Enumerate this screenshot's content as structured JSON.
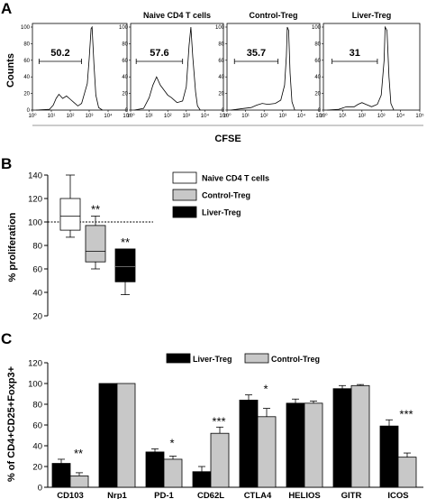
{
  "panel_labels": [
    "A",
    "B",
    "C"
  ],
  "chart_data": [
    {
      "type": "histogram",
      "panel": "A",
      "ylabel": "Counts",
      "xlabel": "CFSE",
      "x_ticks": [
        "10⁰",
        "10¹",
        "10²",
        "10³",
        "10⁴",
        "10⁵"
      ],
      "y_ticks": [
        "0",
        "20",
        "40",
        "60",
        "80",
        "100"
      ],
      "x_range_log10": [
        0,
        5
      ],
      "y_range_percent": [
        0,
        100
      ],
      "histograms": [
        {
          "title": "",
          "gate_label": "50.2",
          "gate_range_log10": [
            0.35,
            2.6
          ],
          "profile": [
            [
              0.2,
              0
            ],
            [
              0.9,
              1
            ],
            [
              1.1,
              6
            ],
            [
              1.25,
              14
            ],
            [
              1.4,
              19
            ],
            [
              1.6,
              14
            ],
            [
              1.8,
              17
            ],
            [
              2.0,
              13
            ],
            [
              2.2,
              9
            ],
            [
              2.4,
              5
            ],
            [
              2.6,
              8
            ],
            [
              2.9,
              32
            ],
            [
              3.0,
              62
            ],
            [
              3.1,
              98
            ],
            [
              3.15,
              100
            ],
            [
              3.25,
              55
            ],
            [
              3.35,
              18
            ],
            [
              3.5,
              3
            ],
            [
              3.7,
              0
            ]
          ]
        },
        {
          "title": "Naive CD4 T cells",
          "gate_label": "57.6",
          "gate_range_log10": [
            0.3,
            2.8
          ],
          "profile": [
            [
              0.2,
              0
            ],
            [
              0.7,
              2
            ],
            [
              1.0,
              15
            ],
            [
              1.2,
              30
            ],
            [
              1.4,
              40
            ],
            [
              1.6,
              30
            ],
            [
              1.8,
              24
            ],
            [
              2.0,
              18
            ],
            [
              2.2,
              15
            ],
            [
              2.5,
              9
            ],
            [
              2.8,
              11
            ],
            [
              3.0,
              28
            ],
            [
              3.15,
              78
            ],
            [
              3.25,
              100
            ],
            [
              3.35,
              64
            ],
            [
              3.5,
              22
            ],
            [
              3.6,
              5
            ],
            [
              3.75,
              0
            ]
          ]
        },
        {
          "title": "Control-Treg",
          "gate_label": "35.7",
          "gate_range_log10": [
            0.4,
            2.75
          ],
          "profile": [
            [
              0.2,
              0
            ],
            [
              0.9,
              2
            ],
            [
              1.3,
              3
            ],
            [
              1.6,
              6
            ],
            [
              1.9,
              8
            ],
            [
              2.2,
              7
            ],
            [
              2.6,
              8
            ],
            [
              2.9,
              12
            ],
            [
              3.1,
              30
            ],
            [
              3.2,
              65
            ],
            [
              3.25,
              100
            ],
            [
              3.32,
              96
            ],
            [
              3.4,
              45
            ],
            [
              3.5,
              10
            ],
            [
              3.65,
              0
            ]
          ]
        },
        {
          "title": "Liver-Treg",
          "gate_label": "31",
          "gate_range_log10": [
            0.45,
            2.8
          ],
          "profile": [
            [
              0.2,
              0
            ],
            [
              0.8,
              1
            ],
            [
              1.2,
              4
            ],
            [
              1.6,
              4
            ],
            [
              1.8,
              7
            ],
            [
              2.0,
              9
            ],
            [
              2.2,
              7
            ],
            [
              2.5,
              4
            ],
            [
              2.8,
              7
            ],
            [
              3.0,
              18
            ],
            [
              3.15,
              60
            ],
            [
              3.2,
              100
            ],
            [
              3.3,
              96
            ],
            [
              3.4,
              40
            ],
            [
              3.5,
              8
            ],
            [
              3.65,
              0
            ]
          ]
        }
      ]
    },
    {
      "type": "boxplot",
      "panel": "B",
      "ylabel": "% proliferation",
      "ylim": [
        20,
        140
      ],
      "y_ticks": [
        20,
        40,
        60,
        80,
        100,
        120,
        140
      ],
      "reference_line": 100,
      "series": [
        {
          "name": "Naive CD4 T cells",
          "color": "#ffffff",
          "whisker_low": 87,
          "q1": 93,
          "median": 105,
          "q3": 120,
          "whisker_high": 140,
          "annotation": ""
        },
        {
          "name": "Control-Treg",
          "color": "#c8c8c8",
          "whisker_low": 60,
          "q1": 66,
          "median": 75,
          "q3": 97,
          "whisker_high": 105,
          "annotation": "**"
        },
        {
          "name": "Liver-Treg",
          "color": "#000000",
          "whisker_low": 38,
          "q1": 49,
          "median": 62,
          "q3": 77,
          "whisker_high": 77,
          "annotation": "**"
        }
      ],
      "legend_position": "right"
    },
    {
      "type": "bar",
      "panel": "C",
      "ylabel": "% of CD4+CD25+Foxp3+",
      "ylim": [
        0,
        120
      ],
      "y_ticks": [
        0,
        20,
        40,
        60,
        80,
        100,
        120
      ],
      "categories": [
        "CD103",
        "Nrp1",
        "PD-1",
        "CD62L",
        "CTLA4",
        "HELIOS",
        "GITR",
        "ICOS"
      ],
      "series": [
        {
          "name": "Liver-Treg",
          "color": "#000000",
          "values": [
            23,
            100,
            34,
            15,
            84,
            81,
            95,
            59
          ],
          "errors": [
            4,
            0,
            3,
            5,
            5,
            4,
            3,
            6
          ]
        },
        {
          "name": "Control-Treg",
          "color": "#c8c8c8",
          "values": [
            11,
            100,
            27,
            52,
            68,
            81,
            98,
            29
          ],
          "errors": [
            3,
            0,
            3,
            6,
            8,
            2,
            1,
            4
          ]
        }
      ],
      "annotations": [
        "**",
        "",
        "*",
        "***",
        "*",
        "",
        "",
        "***"
      ],
      "legend_position": "top"
    }
  ]
}
